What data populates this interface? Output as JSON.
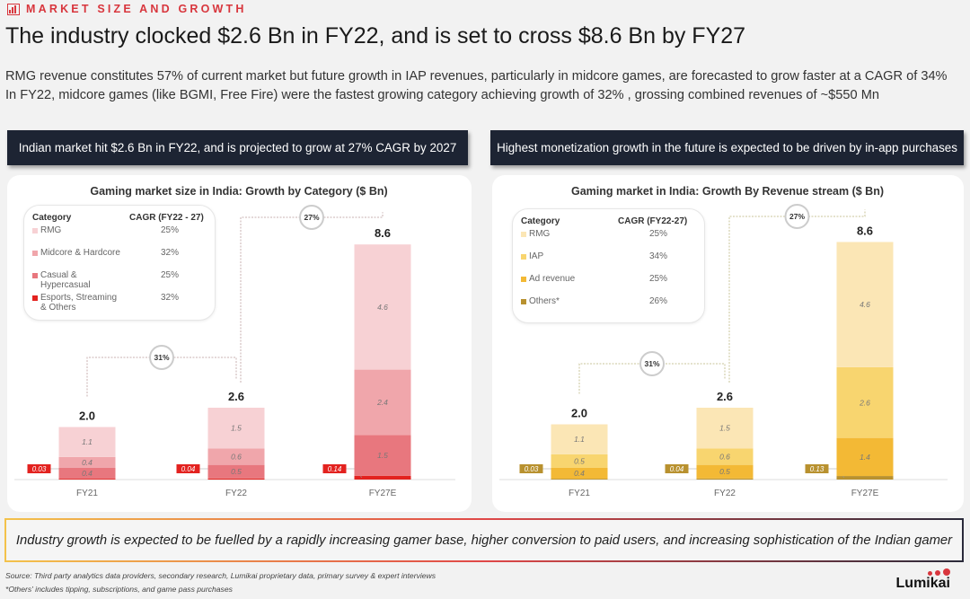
{
  "section_label": "MARKET SIZE AND GROWTH",
  "title": "The industry clocked $2.6 Bn in FY22, and is set to cross $8.6 Bn by FY27",
  "subtitle": [
    "RMG revenue constitutes 57% of current market but future growth in IAP revenues, particularly in midcore games, are forecasted to grow faster at a CAGR of 34%",
    "In FY22, midcore games (like BGMI, Free Fire) were the fastest growing category achieving growth of 32% , grossing combined revenues of ~$550 Mn"
  ],
  "left_header": "Indian market hit $2.6 Bn in FY22, and is projected to grow at 27% CAGR by 2027",
  "right_header": "Highest monetization growth in the future is expected to be driven by in-app purchases",
  "chart_data": [
    {
      "type": "bar",
      "stacked": true,
      "title": "Gaming market size in India: Growth by Category ($ Bn)",
      "legend_header": [
        "Category",
        "CAGR (FY22 - 27)"
      ],
      "categories": [
        "FY21",
        "FY22",
        "FY27E"
      ],
      "totals": [
        "2.0",
        "2.6",
        "8.6"
      ],
      "series": [
        {
          "name": "Esports, Streaming & Others",
          "cagr": "32%",
          "color": "#e3221f",
          "values": [
            0.03,
            0.04,
            0.14
          ],
          "labels": [
            "0.03",
            "0.04",
            "0.14"
          ]
        },
        {
          "name": "Casual & Hypercasual",
          "cagr": "25%",
          "color": "#e8777e",
          "values": [
            0.4,
            0.5,
            1.5
          ],
          "labels": [
            "0.4",
            "0.5",
            "1.5"
          ]
        },
        {
          "name": "Midcore & Hardcore",
          "cagr": "32%",
          "color": "#f0a6ab",
          "values": [
            0.4,
            0.6,
            2.4
          ],
          "labels": [
            "0.4",
            "0.6",
            "2.4"
          ]
        },
        {
          "name": "RMG",
          "cagr": "25%",
          "color": "#f7d1d4",
          "values": [
            1.1,
            1.5,
            4.6
          ],
          "labels": [
            "1.1",
            "1.5",
            "4.6"
          ]
        }
      ],
      "growth": [
        {
          "from": "FY21",
          "to": "FY22",
          "label": "31%"
        },
        {
          "from": "FY22",
          "to": "FY27E",
          "label": "27%"
        }
      ],
      "connector_color": "#c8b0b0",
      "ylim": [
        0,
        8.6
      ]
    },
    {
      "type": "bar",
      "stacked": true,
      "title": "Gaming market in India: Growth By Revenue stream ($ Bn)",
      "legend_header": [
        "Category",
        "CAGR (FY22-27)"
      ],
      "categories": [
        "FY21",
        "FY22",
        "FY27E"
      ],
      "totals": [
        "2.0",
        "2.6",
        "8.6"
      ],
      "series": [
        {
          "name": "Others*",
          "cagr": "26%",
          "color": "#b8912f",
          "values": [
            0.03,
            0.04,
            0.13
          ],
          "labels": [
            "0.03",
            "0.04",
            "0.13"
          ]
        },
        {
          "name": "Ad revenue",
          "cagr": "25%",
          "color": "#f3b935",
          "values": [
            0.4,
            0.5,
            1.4
          ],
          "labels": [
            "0.4",
            "0.5",
            "1.4"
          ]
        },
        {
          "name": "IAP",
          "cagr": "34%",
          "color": "#f8d56f",
          "values": [
            0.5,
            0.6,
            2.6
          ],
          "labels": [
            "0.5",
            "0.6",
            "2.6"
          ]
        },
        {
          "name": "RMG",
          "cagr": "25%",
          "color": "#fbe6b5",
          "values": [
            1.1,
            1.5,
            4.6
          ],
          "labels": [
            "1.1",
            "1.5",
            "4.6"
          ]
        }
      ],
      "growth": [
        {
          "from": "FY21",
          "to": "FY22",
          "label": "31%"
        },
        {
          "from": "FY22",
          "to": "FY27E",
          "label": "27%"
        }
      ],
      "connector_color": "#c9c49a",
      "ylim": [
        0,
        8.6
      ]
    }
  ],
  "callout": "Industry growth is expected to be fuelled by a rapidly increasing gamer base, higher conversion to paid users, and increasing sophistication of the Indian gamer",
  "footnotes": [
    "Source: Third party analytics data providers, secondary research, Lumikai proprietary data, primary survey & expert interviews",
    "*Others' includes tipping, subscriptions, and game pass purchases"
  ],
  "logo_text": "Lumikai"
}
